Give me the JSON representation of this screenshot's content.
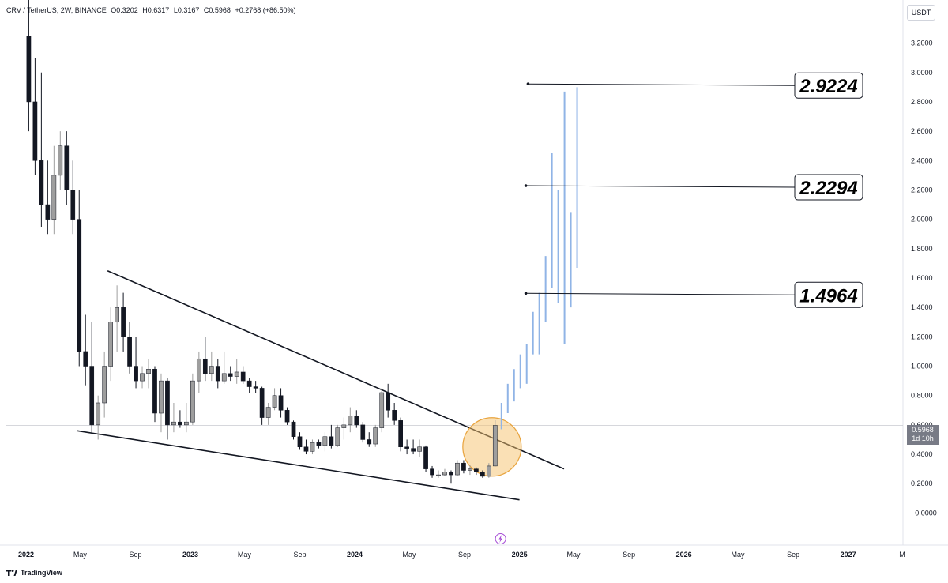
{
  "header": {
    "symbol": "CRV / TetherUS, 2W, BINANCE",
    "open": "O0.3202",
    "high": "H0.6317",
    "low": "L0.3167",
    "close": "C0.5968",
    "change": "+0.2768 (+86.50%)"
  },
  "currency_label": "USDT",
  "current_price": {
    "value": "0.5968",
    "countdown": "1d 10h"
  },
  "footer": {
    "brand": "TradingView"
  },
  "colors": {
    "candle_up": "#9e9e9e",
    "candle_down": "#131722",
    "projection": "#90b4e6",
    "highlight_fill": "#f5c26b",
    "highlight_stroke": "#e8a33c"
  },
  "chart_data": {
    "type": "candlestick",
    "ylim": [
      -0.1,
      3.3
    ],
    "y_scale": "linear",
    "y_ticks": [
      "3.2000",
      "3.0000",
      "2.8000",
      "2.6000",
      "2.4000",
      "2.2000",
      "2.0000",
      "1.8000",
      "1.6000",
      "1.4000",
      "1.2000",
      "1.0000",
      "0.8000",
      "0.6000",
      "0.4000",
      "0.2000",
      "−0.0000"
    ],
    "y_tick_values": [
      3.2,
      3.0,
      2.8,
      2.6,
      2.4,
      2.2,
      2.0,
      1.8,
      1.6,
      1.4,
      1.2,
      1.0,
      0.8,
      0.6,
      0.4,
      0.2,
      0.0
    ],
    "x_range": [
      "2022-01-01",
      "2027-05-01"
    ],
    "x_ticks": [
      {
        "label": "2022",
        "date": "2022-01-01",
        "bold": true
      },
      {
        "label": "May",
        "date": "2022-05-01",
        "bold": false
      },
      {
        "label": "Sep",
        "date": "2022-09-01",
        "bold": false
      },
      {
        "label": "2023",
        "date": "2023-01-01",
        "bold": true
      },
      {
        "label": "May",
        "date": "2023-05-01",
        "bold": false
      },
      {
        "label": "Sep",
        "date": "2023-09-01",
        "bold": false
      },
      {
        "label": "2024",
        "date": "2024-01-01",
        "bold": true
      },
      {
        "label": "May",
        "date": "2024-05-01",
        "bold": false
      },
      {
        "label": "Sep",
        "date": "2024-09-01",
        "bold": false
      },
      {
        "label": "2025",
        "date": "2025-01-01",
        "bold": true
      },
      {
        "label": "May",
        "date": "2025-05-01",
        "bold": false
      },
      {
        "label": "Sep",
        "date": "2025-09-01",
        "bold": false
      },
      {
        "label": "2026",
        "date": "2026-01-01",
        "bold": true
      },
      {
        "label": "May",
        "date": "2026-05-01",
        "bold": false
      },
      {
        "label": "Sep",
        "date": "2026-09-01",
        "bold": false
      },
      {
        "label": "2027",
        "date": "2027-01-01",
        "bold": true
      },
      {
        "label": "M",
        "date": "2027-05-01",
        "bold": false
      }
    ],
    "candles": [
      {
        "date": "2022-01-07",
        "o": 3.25,
        "h": 3.5,
        "l": 2.6,
        "c": 2.8
      },
      {
        "date": "2022-01-21",
        "o": 2.8,
        "h": 3.1,
        "l": 2.3,
        "c": 2.4
      },
      {
        "date": "2022-02-04",
        "o": 2.4,
        "h": 3.0,
        "l": 1.95,
        "c": 2.1
      },
      {
        "date": "2022-02-18",
        "o": 2.1,
        "h": 2.4,
        "l": 1.9,
        "c": 2.0
      },
      {
        "date": "2022-03-04",
        "o": 2.0,
        "h": 2.5,
        "l": 1.9,
        "c": 2.3
      },
      {
        "date": "2022-03-18",
        "o": 2.3,
        "h": 2.6,
        "l": 2.2,
        "c": 2.5
      },
      {
        "date": "2022-04-01",
        "o": 2.5,
        "h": 2.6,
        "l": 2.1,
        "c": 2.2
      },
      {
        "date": "2022-04-15",
        "o": 2.2,
        "h": 2.4,
        "l": 1.9,
        "c": 2.0
      },
      {
        "date": "2022-04-29",
        "o": 2.0,
        "h": 2.2,
        "l": 1.0,
        "c": 1.1
      },
      {
        "date": "2022-05-13",
        "o": 1.1,
        "h": 1.35,
        "l": 0.87,
        "c": 1.0
      },
      {
        "date": "2022-05-27",
        "o": 1.0,
        "h": 1.3,
        "l": 0.55,
        "c": 0.6
      },
      {
        "date": "2022-06-10",
        "o": 0.6,
        "h": 0.8,
        "l": 0.5,
        "c": 0.75
      },
      {
        "date": "2022-06-24",
        "o": 0.75,
        "h": 1.1,
        "l": 0.65,
        "c": 1.0
      },
      {
        "date": "2022-07-08",
        "o": 1.0,
        "h": 1.4,
        "l": 0.9,
        "c": 1.3
      },
      {
        "date": "2022-07-22",
        "o": 1.3,
        "h": 1.55,
        "l": 1.1,
        "c": 1.4
      },
      {
        "date": "2022-08-05",
        "o": 1.4,
        "h": 1.5,
        "l": 1.1,
        "c": 1.2
      },
      {
        "date": "2022-08-19",
        "o": 1.2,
        "h": 1.3,
        "l": 0.95,
        "c": 1.0
      },
      {
        "date": "2022-09-02",
        "o": 1.0,
        "h": 1.2,
        "l": 0.85,
        "c": 0.9
      },
      {
        "date": "2022-09-16",
        "o": 0.9,
        "h": 1.0,
        "l": 0.85,
        "c": 0.95
      },
      {
        "date": "2022-09-30",
        "o": 0.95,
        "h": 1.05,
        "l": 0.85,
        "c": 0.98
      },
      {
        "date": "2022-10-14",
        "o": 0.98,
        "h": 1.0,
        "l": 0.62,
        "c": 0.68
      },
      {
        "date": "2022-10-28",
        "o": 0.68,
        "h": 0.95,
        "l": 0.55,
        "c": 0.9
      },
      {
        "date": "2022-11-11",
        "o": 0.9,
        "h": 0.92,
        "l": 0.5,
        "c": 0.6
      },
      {
        "date": "2022-11-25",
        "o": 0.6,
        "h": 0.75,
        "l": 0.55,
        "c": 0.62
      },
      {
        "date": "2022-12-09",
        "o": 0.62,
        "h": 0.7,
        "l": 0.58,
        "c": 0.6
      },
      {
        "date": "2022-12-23",
        "o": 0.6,
        "h": 0.75,
        "l": 0.55,
        "c": 0.62
      },
      {
        "date": "2023-01-06",
        "o": 0.62,
        "h": 0.95,
        "l": 0.6,
        "c": 0.9
      },
      {
        "date": "2023-01-20",
        "o": 0.9,
        "h": 1.1,
        "l": 0.82,
        "c": 1.05
      },
      {
        "date": "2023-02-03",
        "o": 1.05,
        "h": 1.2,
        "l": 0.9,
        "c": 0.95
      },
      {
        "date": "2023-02-17",
        "o": 0.95,
        "h": 1.1,
        "l": 0.9,
        "c": 1.0
      },
      {
        "date": "2023-03-03",
        "o": 1.0,
        "h": 1.05,
        "l": 0.85,
        "c": 0.9
      },
      {
        "date": "2023-03-17",
        "o": 0.9,
        "h": 1.1,
        "l": 0.88,
        "c": 0.95
      },
      {
        "date": "2023-03-31",
        "o": 0.95,
        "h": 1.0,
        "l": 0.9,
        "c": 0.93
      },
      {
        "date": "2023-04-14",
        "o": 0.93,
        "h": 1.05,
        "l": 0.88,
        "c": 0.96
      },
      {
        "date": "2023-04-28",
        "o": 0.96,
        "h": 1.0,
        "l": 0.88,
        "c": 0.9
      },
      {
        "date": "2023-05-12",
        "o": 0.9,
        "h": 0.92,
        "l": 0.82,
        "c": 0.86
      },
      {
        "date": "2023-05-26",
        "o": 0.86,
        "h": 0.9,
        "l": 0.82,
        "c": 0.85
      },
      {
        "date": "2023-06-09",
        "o": 0.85,
        "h": 0.86,
        "l": 0.6,
        "c": 0.65
      },
      {
        "date": "2023-06-23",
        "o": 0.65,
        "h": 0.75,
        "l": 0.6,
        "c": 0.72
      },
      {
        "date": "2023-07-07",
        "o": 0.72,
        "h": 0.85,
        "l": 0.7,
        "c": 0.8
      },
      {
        "date": "2023-07-21",
        "o": 0.8,
        "h": 0.85,
        "l": 0.65,
        "c": 0.7
      },
      {
        "date": "2023-08-04",
        "o": 0.7,
        "h": 0.72,
        "l": 0.6,
        "c": 0.62
      },
      {
        "date": "2023-08-18",
        "o": 0.62,
        "h": 0.63,
        "l": 0.5,
        "c": 0.52
      },
      {
        "date": "2023-09-01",
        "o": 0.52,
        "h": 0.55,
        "l": 0.43,
        "c": 0.45
      },
      {
        "date": "2023-09-15",
        "o": 0.45,
        "h": 0.5,
        "l": 0.4,
        "c": 0.42
      },
      {
        "date": "2023-09-29",
        "o": 0.42,
        "h": 0.5,
        "l": 0.4,
        "c": 0.48
      },
      {
        "date": "2023-10-13",
        "o": 0.48,
        "h": 0.5,
        "l": 0.44,
        "c": 0.46
      },
      {
        "date": "2023-10-27",
        "o": 0.46,
        "h": 0.55,
        "l": 0.42,
        "c": 0.52
      },
      {
        "date": "2023-11-10",
        "o": 0.52,
        "h": 0.6,
        "l": 0.44,
        "c": 0.46
      },
      {
        "date": "2023-11-24",
        "o": 0.46,
        "h": 0.6,
        "l": 0.45,
        "c": 0.58
      },
      {
        "date": "2023-12-08",
        "o": 0.58,
        "h": 0.65,
        "l": 0.5,
        "c": 0.6
      },
      {
        "date": "2023-12-22",
        "o": 0.6,
        "h": 0.72,
        "l": 0.55,
        "c": 0.66
      },
      {
        "date": "2024-01-05",
        "o": 0.66,
        "h": 0.7,
        "l": 0.58,
        "c": 0.6
      },
      {
        "date": "2024-01-19",
        "o": 0.6,
        "h": 0.62,
        "l": 0.48,
        "c": 0.5
      },
      {
        "date": "2024-02-02",
        "o": 0.5,
        "h": 0.55,
        "l": 0.45,
        "c": 0.47
      },
      {
        "date": "2024-02-16",
        "o": 0.47,
        "h": 0.6,
        "l": 0.45,
        "c": 0.58
      },
      {
        "date": "2024-03-01",
        "o": 0.58,
        "h": 0.85,
        "l": 0.55,
        "c": 0.82
      },
      {
        "date": "2024-03-15",
        "o": 0.82,
        "h": 0.88,
        "l": 0.65,
        "c": 0.7
      },
      {
        "date": "2024-03-29",
        "o": 0.7,
        "h": 0.75,
        "l": 0.6,
        "c": 0.63
      },
      {
        "date": "2024-04-12",
        "o": 0.63,
        "h": 0.65,
        "l": 0.42,
        "c": 0.45
      },
      {
        "date": "2024-04-26",
        "o": 0.45,
        "h": 0.5,
        "l": 0.4,
        "c": 0.44
      },
      {
        "date": "2024-05-10",
        "o": 0.44,
        "h": 0.5,
        "l": 0.4,
        "c": 0.42
      },
      {
        "date": "2024-05-24",
        "o": 0.42,
        "h": 0.5,
        "l": 0.38,
        "c": 0.45
      },
      {
        "date": "2024-06-07",
        "o": 0.45,
        "h": 0.46,
        "l": 0.28,
        "c": 0.3
      },
      {
        "date": "2024-06-21",
        "o": 0.3,
        "h": 0.32,
        "l": 0.24,
        "c": 0.26
      },
      {
        "date": "2024-07-05",
        "o": 0.26,
        "h": 0.29,
        "l": 0.24,
        "c": 0.26
      },
      {
        "date": "2024-07-19",
        "o": 0.26,
        "h": 0.3,
        "l": 0.25,
        "c": 0.28
      },
      {
        "date": "2024-08-02",
        "o": 0.28,
        "h": 0.29,
        "l": 0.2,
        "c": 0.26
      },
      {
        "date": "2024-08-16",
        "o": 0.26,
        "h": 0.36,
        "l": 0.25,
        "c": 0.34
      },
      {
        "date": "2024-08-30",
        "o": 0.34,
        "h": 0.36,
        "l": 0.27,
        "c": 0.29
      },
      {
        "date": "2024-09-13",
        "o": 0.29,
        "h": 0.33,
        "l": 0.26,
        "c": 0.3
      },
      {
        "date": "2024-09-27",
        "o": 0.3,
        "h": 0.31,
        "l": 0.26,
        "c": 0.28
      },
      {
        "date": "2024-10-11",
        "o": 0.28,
        "h": 0.29,
        "l": 0.24,
        "c": 0.25
      },
      {
        "date": "2024-10-25",
        "o": 0.25,
        "h": 0.34,
        "l": 0.24,
        "c": 0.32
      },
      {
        "date": "2024-11-08",
        "o": 0.3202,
        "h": 0.6317,
        "l": 0.3167,
        "c": 0.5968
      }
    ],
    "projection_bars": [
      {
        "date": "2024-11-22",
        "h": 0.75,
        "l": 0.57
      },
      {
        "date": "2024-12-06",
        "h": 0.88,
        "l": 0.68
      },
      {
        "date": "2024-12-20",
        "h": 0.98,
        "l": 0.76
      },
      {
        "date": "2025-01-03",
        "h": 1.08,
        "l": 0.85
      },
      {
        "date": "2025-01-17",
        "h": 1.15,
        "l": 0.88
      },
      {
        "date": "2025-01-31",
        "h": 1.37,
        "l": 1.08
      },
      {
        "date": "2025-02-14",
        "h": 1.5,
        "l": 1.08
      },
      {
        "date": "2025-02-28",
        "h": 1.75,
        "l": 1.3
      },
      {
        "date": "2025-03-14",
        "h": 2.45,
        "l": 1.53
      },
      {
        "date": "2025-03-28",
        "h": 2.2,
        "l": 1.43
      },
      {
        "date": "2025-04-11",
        "h": 2.87,
        "l": 1.15
      },
      {
        "date": "2025-04-25",
        "h": 2.05,
        "l": 1.4
      },
      {
        "date": "2025-05-09",
        "h": 2.9,
        "l": 1.67
      }
    ],
    "trendlines": [
      {
        "name": "upper",
        "points": [
          {
            "date": "2022-07-01",
            "y": 1.65
          },
          {
            "date": "2025-04-10",
            "y": 0.3
          }
        ]
      },
      {
        "name": "lower",
        "points": [
          {
            "date": "2022-04-25",
            "y": 0.56
          },
          {
            "date": "2025-01-01",
            "y": 0.09
          }
        ]
      }
    ],
    "price_levels": [
      {
        "label": "2.9224",
        "value": 2.9224,
        "start": "2025-01-20"
      },
      {
        "label": "2.2294",
        "value": 2.2294,
        "start": "2025-01-15"
      },
      {
        "label": "1.4964",
        "value": 1.4964,
        "start": "2025-01-15"
      }
    ],
    "highlight": {
      "date": "2024-11-01",
      "y": 0.45
    },
    "current_price_line": 0.5968,
    "event_marker": {
      "date": "2024-11-20"
    }
  }
}
